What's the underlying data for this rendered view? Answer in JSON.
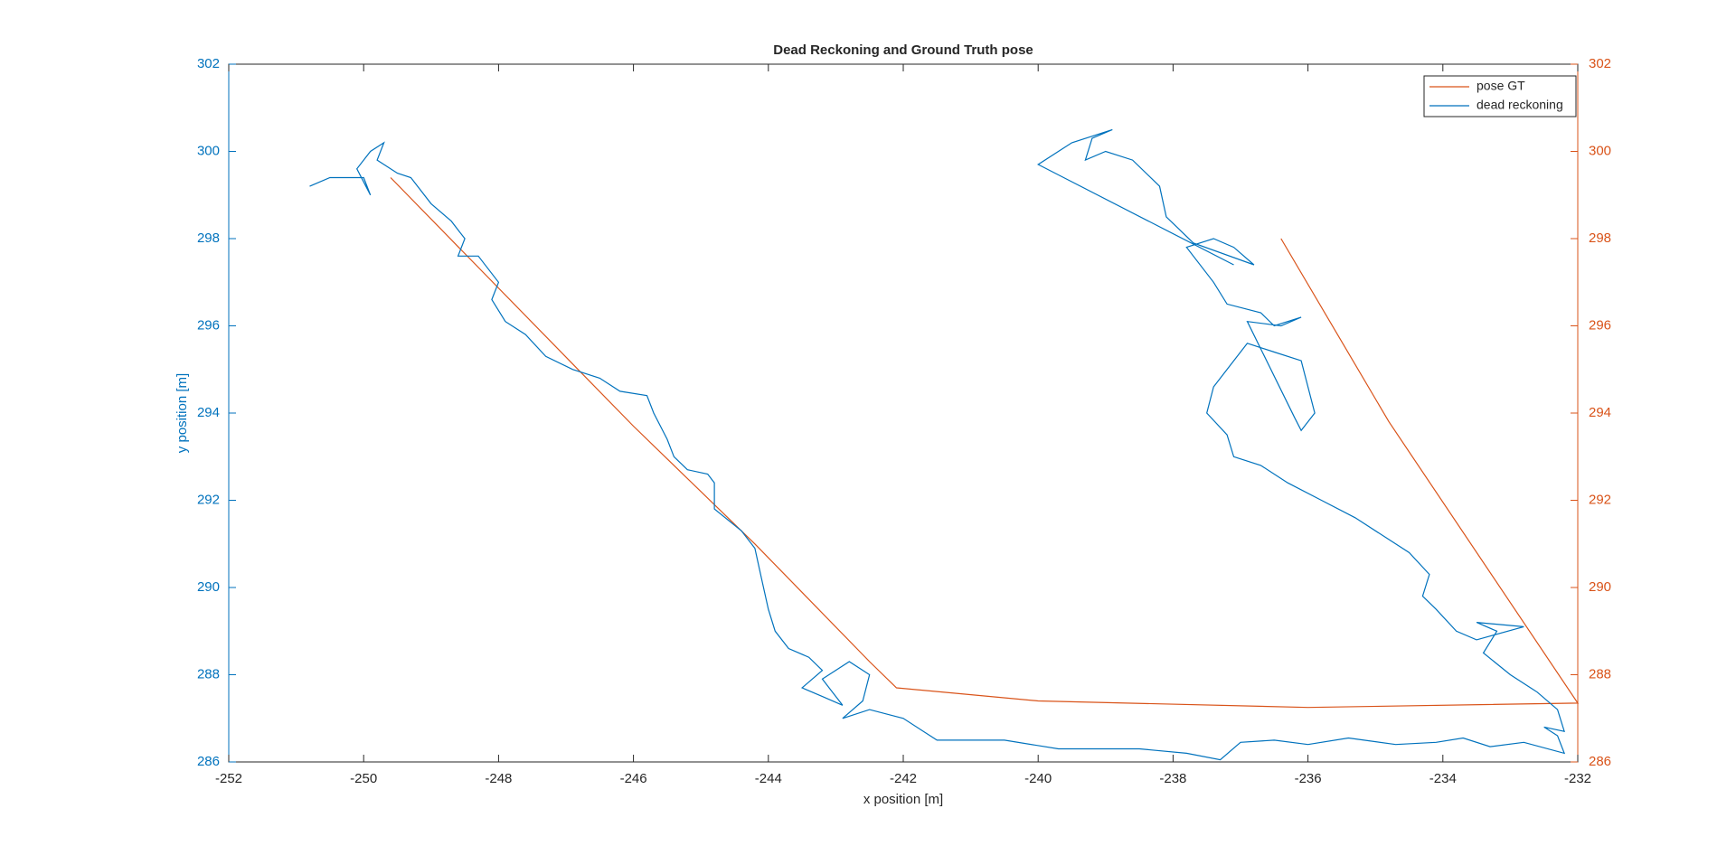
{
  "chart_data": {
    "type": "line",
    "title": "Dead Reckoning and Ground Truth pose",
    "x_label": "x position [m]",
    "y_label": "y position [m]",
    "xlim": [
      -252,
      -232
    ],
    "xticks": [
      -252,
      -250,
      -248,
      -246,
      -244,
      -242,
      -240,
      -238,
      -236,
      -234,
      -232
    ],
    "ylim": [
      286,
      302
    ],
    "yticks": [
      286,
      288,
      290,
      292,
      294,
      296,
      298,
      300,
      302
    ],
    "y2lim": [
      286,
      302
    ],
    "y2ticks": [
      286,
      288,
      290,
      292,
      294,
      296,
      298,
      300,
      302
    ],
    "y_color": "#0072bd",
    "y2_color": "#d95319",
    "legend": "upper right",
    "series": [
      {
        "name": "pose GT",
        "color": "#d95319",
        "axis": "y2",
        "x": [
          -249.6,
          -246,
          -244.2,
          -242.5,
          -242.1,
          -240,
          -236,
          -232,
          -234.8,
          -236.4
        ],
        "values": [
          299.4,
          293.7,
          291,
          288.3,
          287.7,
          287.4,
          287.25,
          287.35,
          293.8,
          298
        ]
      },
      {
        "name": "dead reckoning",
        "color": "#0072bd",
        "x": [
          -250.8,
          -250.5,
          -250,
          -249.9,
          -250.1,
          -249.9,
          -249.7,
          -249.8,
          -249.5,
          -249.3,
          -249,
          -248.7,
          -248.6,
          -248.5,
          -248.6,
          -248.3,
          -248,
          -248.1,
          -247.9,
          -247.6,
          -247.3,
          -246.9,
          -246.5,
          -246.2,
          -245.8,
          -245.7,
          -245.5,
          -245.4,
          -245.2,
          -244.9,
          -244.8,
          -244.8,
          -244.4,
          -244.2,
          -244.1,
          -244,
          -243.9,
          -243.7,
          -243.4,
          -243.2,
          -243.5,
          -243.2,
          -242.9,
          -243.2,
          -242.8,
          -242.5,
          -242.6,
          -242.9,
          -242.5,
          -242,
          -241.5,
          -240.5,
          -239.7,
          -238.5,
          -237.8,
          -237.3,
          -237,
          -236.5,
          -236,
          -235.4,
          -234.7,
          -234.1,
          -233.7,
          -233.3,
          -232.8,
          -232.2,
          -232.3,
          -232.5,
          -232.2,
          -232.3,
          -232.6,
          -233,
          -233.4,
          -233.2,
          -233.5,
          -232.8,
          -233.5,
          -233.8,
          -234.1,
          -234.3,
          -234.2,
          -234.5,
          -234.8,
          -235.3,
          -235.8,
          -236.3,
          -236.7,
          -237.1,
          -237.2,
          -237.5,
          -237.4,
          -237.2,
          -236.9,
          -236.5,
          -236.1,
          -235.9,
          -236.1,
          -236.2,
          -236.9,
          -236.4,
          -236.1,
          -236.5,
          -236.7,
          -237.2,
          -237.4,
          -237.8,
          -237.4,
          -237.1,
          -236.8,
          -237.7,
          -238.1,
          -238.2,
          -238.6,
          -239,
          -239.3,
          -239.2,
          -238.9,
          -239.5,
          -239.7,
          -240,
          -237.1
        ],
        "values": [
          299.2,
          299.4,
          299.4,
          299,
          299.6,
          300,
          300.2,
          299.8,
          299.5,
          299.4,
          298.8,
          298.4,
          298.2,
          298,
          297.6,
          297.6,
          297,
          296.6,
          296.1,
          295.8,
          295.3,
          295,
          294.8,
          294.5,
          294.4,
          294,
          293.4,
          293,
          292.7,
          292.6,
          292.4,
          291.8,
          291.3,
          290.9,
          290.2,
          289.5,
          289,
          288.6,
          288.4,
          288.1,
          287.7,
          287.5,
          287.3,
          287.9,
          288.3,
          288,
          287.4,
          287,
          287.2,
          287,
          286.5,
          286.5,
          286.3,
          286.3,
          286.2,
          286.05,
          286.45,
          286.5,
          286.4,
          286.55,
          286.4,
          286.45,
          286.55,
          286.35,
          286.45,
          286.2,
          286.6,
          286.8,
          286.7,
          287.2,
          287.6,
          288,
          288.5,
          289,
          289.2,
          289.1,
          288.8,
          289,
          289.5,
          289.8,
          290.3,
          290.8,
          291.1,
          291.6,
          292,
          292.4,
          292.8,
          293,
          293.5,
          294,
          294.6,
          295,
          295.6,
          295.4,
          295.2,
          294,
          293.6,
          293.9,
          296.1,
          296,
          296.2,
          296,
          296.3,
          296.5,
          297,
          297.8,
          298,
          297.8,
          297.4,
          297.9,
          298.5,
          299.2,
          299.8,
          300,
          299.8,
          300.3,
          300.5,
          300.2,
          300,
          299.7,
          297.4
        ]
      }
    ]
  }
}
